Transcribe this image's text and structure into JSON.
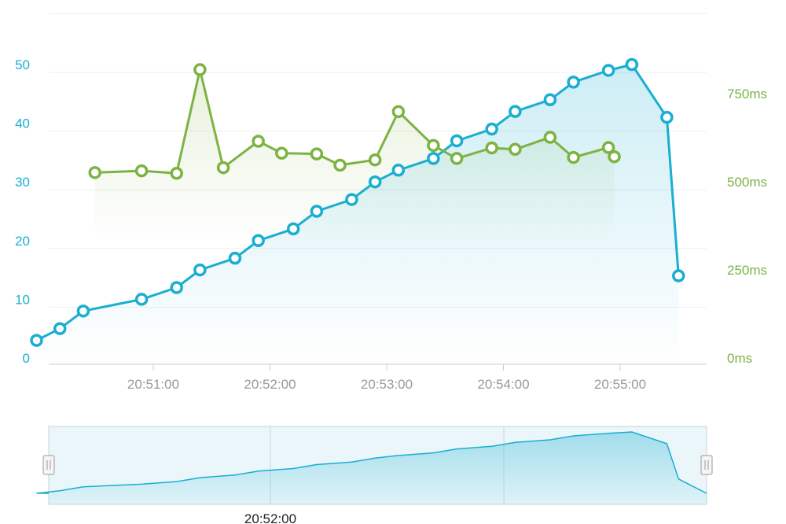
{
  "chart_data": {
    "type": "line",
    "x": [
      "20:50:00",
      "20:50:12",
      "20:50:24",
      "20:50:30",
      "20:50:36",
      "20:50:54",
      "20:51:12",
      "20:51:24",
      "20:51:36",
      "20:51:42",
      "20:51:54",
      "20:52:06",
      "20:52:12",
      "20:52:30",
      "20:52:42",
      "20:52:54",
      "20:52:57",
      "20:53:06",
      "20:53:12",
      "20:53:24",
      "20:53:36",
      "20:53:42",
      "20:53:54",
      "20:54:06",
      "20:54:12",
      "20:54:24",
      "20:54:36",
      "20:54:42",
      "20:54:54",
      "20:54:57",
      "20:55:06",
      "20:55:18",
      "20:55:30",
      "20:55:36"
    ],
    "series": [
      {
        "axis": "left",
        "color": "#1aaed0",
        "points": [
          [
            "20:50:00",
            3
          ],
          [
            "20:50:12",
            5
          ],
          [
            "20:50:24",
            8
          ],
          [
            "20:50:54",
            10
          ],
          [
            "20:51:12",
            12
          ],
          [
            "20:51:24",
            15
          ],
          [
            "20:51:42",
            17
          ],
          [
            "20:51:54",
            20
          ],
          [
            "20:52:12",
            22
          ],
          [
            "20:52:24",
            25
          ],
          [
            "20:52:42",
            27
          ],
          [
            "20:52:54",
            30
          ],
          [
            "20:53:06",
            32
          ],
          [
            "20:53:24",
            34
          ],
          [
            "20:53:36",
            37
          ],
          [
            "20:53:54",
            39
          ],
          [
            "20:54:06",
            42
          ],
          [
            "20:54:24",
            44
          ],
          [
            "20:54:36",
            47
          ],
          [
            "20:54:54",
            49
          ],
          [
            "20:55:06",
            50
          ],
          [
            "20:55:24",
            41
          ],
          [
            "20:55:30",
            14
          ]
        ]
      },
      {
        "axis": "right",
        "color": "#7cb342",
        "points": [
          [
            "20:50:30",
            526
          ],
          [
            "20:50:54",
            531
          ],
          [
            "20:51:12",
            524
          ],
          [
            "20:51:24",
            818
          ],
          [
            "20:51:36",
            540
          ],
          [
            "20:51:54",
            615
          ],
          [
            "20:52:06",
            581
          ],
          [
            "20:52:24",
            579
          ],
          [
            "20:52:36",
            547
          ],
          [
            "20:52:54",
            562
          ],
          [
            "20:53:06",
            699
          ],
          [
            "20:53:24",
            603
          ],
          [
            "20:53:36",
            566
          ],
          [
            "20:53:54",
            596
          ],
          [
            "20:54:06",
            592
          ],
          [
            "20:54:24",
            626
          ],
          [
            "20:54:36",
            569
          ],
          [
            "20:54:54",
            597
          ],
          [
            "20:54:57",
            571
          ]
        ]
      }
    ],
    "x_ticks": [
      "20:51:00",
      "20:52:00",
      "20:53:00",
      "20:54:00",
      "20:55:00"
    ],
    "left_axis": {
      "ticks": [
        "0",
        "10",
        "20",
        "30",
        "40",
        "50"
      ],
      "range": [
        0,
        60
      ],
      "color": "#1aaed0"
    },
    "right_axis": {
      "ticks": [
        "0ms",
        "250ms",
        "500ms",
        "750ms"
      ],
      "range": [
        0,
        1000
      ],
      "color": "#7cb342"
    },
    "navigator": {
      "label": "20:52:00",
      "color": "#1aaed0"
    },
    "grid": true
  }
}
